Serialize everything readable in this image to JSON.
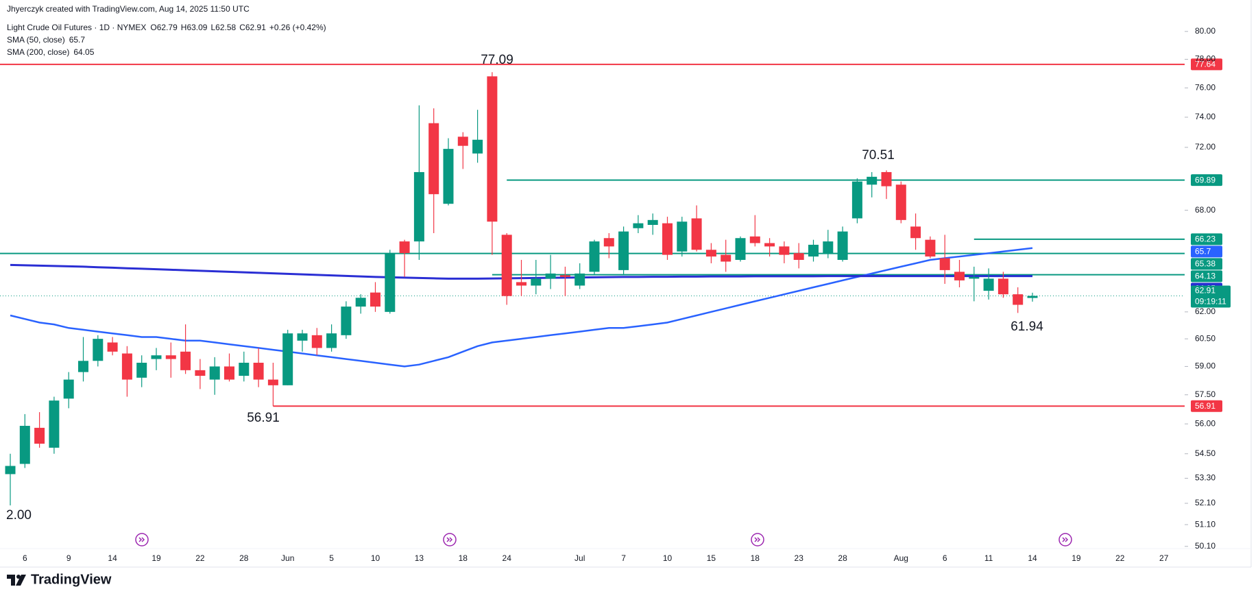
{
  "chart_data": {
    "type": "candlestick",
    "author": "Jhyerczyk created with TradingView.com, Aug 14, 2025 11:50 UTC",
    "symbol": "Light Crude Oil Futures · 1D · NYMEX",
    "ohlc_labels": [
      "O",
      "H",
      "L",
      "C"
    ],
    "change": "+0.26 (+0.42%)",
    "countdown": "09:19:11",
    "brand": "TradingView",
    "up_color": "#089981",
    "down_color": "#f23645",
    "log_scale": true,
    "grid": false,
    "ylim": [
      50.0,
      81.4
    ],
    "yticks": [
      {
        "value": 80,
        "label": "80.00"
      },
      {
        "value": 78,
        "label": "78.00"
      },
      {
        "value": 76,
        "label": "76.00"
      },
      {
        "value": 74,
        "label": "74.00"
      },
      {
        "value": 72,
        "label": "72.00"
      },
      {
        "value": 68,
        "label": "68.00"
      },
      {
        "value": 62,
        "label": "62.00"
      },
      {
        "value": 60.5,
        "label": "60.50"
      },
      {
        "value": 59,
        "label": "59.00"
      },
      {
        "value": 57.5,
        "label": "57.50"
      },
      {
        "value": 56,
        "label": "56.00"
      },
      {
        "value": 54.5,
        "label": "54.50"
      },
      {
        "value": 53.3,
        "label": "53.30"
      },
      {
        "value": 52.1,
        "label": "52.10"
      },
      {
        "value": 51.1,
        "label": "51.10"
      },
      {
        "value": 50.1,
        "label": "50.10"
      }
    ],
    "categories": [
      null,
      "6",
      null,
      null,
      "9",
      null,
      null,
      "14",
      null,
      null,
      "19",
      null,
      null,
      "22",
      null,
      null,
      "28",
      null,
      null,
      "Jun",
      null,
      null,
      "5",
      null,
      null,
      "10",
      null,
      null,
      "13",
      null,
      null,
      "18",
      null,
      null,
      "24",
      null,
      null,
      null,
      null,
      "Jul",
      null,
      null,
      "7",
      null,
      null,
      "10",
      null,
      null,
      "15",
      null,
      null,
      "18",
      null,
      null,
      "23",
      null,
      null,
      "28",
      null,
      null,
      null,
      "Aug",
      null,
      null,
      "6",
      null,
      null,
      "11",
      null,
      null,
      "14",
      null,
      null,
      "19",
      null,
      null,
      "22",
      null,
      null,
      "27"
    ],
    "open": [
      53.5,
      54.0,
      55.8,
      54.8,
      57.3,
      58.7,
      59.3,
      60.3,
      59.7,
      58.4,
      59.4,
      59.6,
      59.8,
      58.8,
      58.3,
      59.0,
      58.5,
      59.2,
      58.3,
      58.0,
      60.4,
      60.7,
      60.0,
      60.7,
      62.3,
      63.1,
      62.0,
      66.1,
      66.1,
      73.6,
      68.4,
      72.7,
      71.6,
      76.8,
      66.5,
      63.7,
      63.5,
      63.9,
      64.1,
      63.5,
      64.3,
      66.3,
      64.4,
      66.9,
      67.1,
      67.2,
      65.5,
      67.5,
      65.6,
      65.3,
      65.0,
      66.4,
      66.0,
      65.8,
      65.4,
      65.2,
      65.4,
      65.0,
      67.5,
      69.6,
      70.4,
      69.6,
      67.0,
      66.2,
      65.1,
      64.3,
      63.9,
      63.2,
      63.9,
      63.0,
      62.79,
      null,
      null,
      null,
      null,
      null,
      null,
      null,
      null,
      null
    ],
    "high": [
      54.5,
      56.5,
      56.6,
      57.4,
      58.7,
      60.6,
      60.7,
      60.6,
      60.1,
      59.6,
      60.0,
      60.3,
      61.3,
      59.4,
      59.5,
      59.7,
      59.8,
      60.0,
      59.2,
      61.0,
      61.0,
      61.1,
      61.3,
      62.6,
      63.0,
      63.7,
      65.6,
      66.2,
      74.8,
      74.6,
      72.6,
      73.0,
      74.5,
      77.09,
      66.6,
      65.0,
      65.0,
      65.3,
      64.6,
      64.8,
      66.2,
      66.6,
      67.0,
      67.7,
      67.8,
      67.6,
      67.6,
      68.3,
      66.0,
      66.2,
      66.4,
      67.7,
      66.3,
      66.1,
      66.0,
      66.2,
      66.8,
      67.0,
      70.0,
      70.4,
      70.51,
      69.8,
      67.8,
      66.4,
      66.5,
      65.0,
      64.6,
      64.5,
      64.3,
      63.4,
      63.09,
      null,
      null,
      null,
      null,
      null,
      null,
      null,
      null,
      null
    ],
    "low": [
      52.0,
      53.8,
      54.8,
      54.5,
      56.8,
      58.2,
      59.0,
      59.6,
      57.4,
      57.9,
      58.8,
      58.4,
      58.6,
      57.8,
      57.5,
      58.2,
      58.2,
      57.9,
      56.91,
      58.0,
      59.8,
      59.6,
      59.8,
      60.5,
      61.9,
      62.0,
      61.9,
      64.0,
      65.0,
      66.6,
      68.3,
      70.6,
      71.0,
      65.3,
      62.4,
      62.9,
      63.0,
      63.3,
      62.9,
      63.3,
      64.1,
      65.1,
      64.1,
      66.6,
      66.5,
      65.0,
      65.2,
      65.5,
      64.8,
      64.3,
      64.9,
      65.8,
      65.2,
      64.8,
      64.5,
      64.9,
      65.1,
      64.9,
      67.2,
      68.8,
      68.7,
      67.2,
      65.6,
      65.1,
      63.6,
      63.4,
      62.6,
      62.7,
      62.8,
      61.94,
      62.58,
      null,
      null,
      null,
      null,
      null,
      null,
      null,
      null,
      null
    ],
    "close": [
      53.9,
      55.9,
      55.0,
      57.2,
      58.3,
      59.3,
      60.5,
      59.8,
      58.3,
      59.2,
      59.6,
      59.4,
      58.8,
      58.5,
      59.0,
      58.3,
      59.2,
      58.3,
      58.0,
      60.8,
      60.8,
      60.0,
      60.8,
      62.3,
      62.8,
      62.3,
      65.4,
      65.4,
      70.4,
      69.0,
      71.9,
      72.1,
      72.5,
      67.3,
      62.9,
      63.5,
      63.9,
      64.2,
      64.0,
      64.2,
      66.1,
      65.8,
      66.7,
      67.2,
      67.4,
      65.3,
      67.3,
      65.6,
      65.2,
      64.9,
      66.3,
      66.0,
      65.8,
      65.3,
      65.0,
      65.9,
      66.1,
      66.7,
      69.8,
      70.1,
      69.5,
      67.4,
      66.3,
      65.2,
      64.4,
      63.8,
      64.0,
      63.9,
      63.0,
      62.4,
      62.91,
      null,
      null,
      null,
      null,
      null,
      null,
      null,
      null,
      null
    ],
    "sma": [
      {
        "name": "SMA (50, close)",
        "color": "#2962ff",
        "values": [
          61.8,
          61.6,
          61.4,
          61.3,
          61.1,
          61.0,
          60.9,
          60.8,
          60.7,
          60.6,
          60.6,
          60.5,
          60.4,
          60.4,
          60.3,
          60.2,
          60.1,
          60.0,
          59.9,
          59.8,
          59.7,
          59.6,
          59.5,
          59.4,
          59.3,
          59.2,
          59.1,
          59.0,
          59.1,
          59.3,
          59.5,
          59.8,
          60.1,
          60.3,
          60.4,
          60.5,
          60.6,
          60.7,
          60.8,
          60.9,
          61.0,
          61.1,
          61.1,
          61.2,
          61.3,
          61.4,
          61.6,
          61.8,
          62.0,
          62.2,
          62.4,
          62.6,
          62.8,
          63.0,
          63.2,
          63.4,
          63.6,
          63.8,
          64.0,
          64.2,
          64.4,
          64.6,
          64.8,
          65.0,
          65.1,
          65.2,
          65.3,
          65.4,
          65.5,
          65.6,
          65.7,
          null,
          null,
          null,
          null,
          null,
          null,
          null,
          null,
          null
        ]
      },
      {
        "name": "SMA (200, close)",
        "color": "#2a2ed4",
        "values": [
          64.7,
          64.68,
          64.66,
          64.64,
          64.62,
          64.6,
          64.57,
          64.54,
          64.51,
          64.48,
          64.45,
          64.42,
          64.39,
          64.36,
          64.33,
          64.3,
          64.27,
          64.24,
          64.21,
          64.18,
          64.15,
          64.12,
          64.09,
          64.06,
          64.03,
          64.0,
          63.98,
          63.96,
          63.94,
          63.92,
          63.9,
          63.9,
          63.9,
          63.91,
          63.92,
          63.93,
          63.94,
          63.95,
          63.96,
          63.97,
          63.98,
          63.99,
          64.0,
          64.0,
          64.01,
          64.01,
          64.02,
          64.02,
          64.03,
          64.03,
          64.03,
          64.04,
          64.04,
          64.04,
          64.04,
          64.04,
          64.05,
          64.05,
          64.05,
          64.05,
          64.05,
          64.05,
          64.05,
          64.05,
          64.05,
          64.05,
          64.05,
          64.05,
          64.05,
          64.05,
          64.05,
          null,
          null,
          null,
          null,
          null,
          null,
          null,
          null,
          null
        ]
      }
    ],
    "levels": [
      {
        "value": 77.64,
        "color": "#f23645"
      },
      {
        "value": 69.89,
        "color": "#089981"
      },
      {
        "value": 66.23,
        "color": "#089981"
      },
      {
        "value": 65.38,
        "color": "#089981"
      },
      {
        "value": 64.13,
        "color": "#089981"
      },
      {
        "value": 56.91,
        "color": "#f23645"
      }
    ],
    "annotations": [
      "77.09",
      "70.51",
      "56.91",
      "61.94",
      "2.00"
    ]
  }
}
